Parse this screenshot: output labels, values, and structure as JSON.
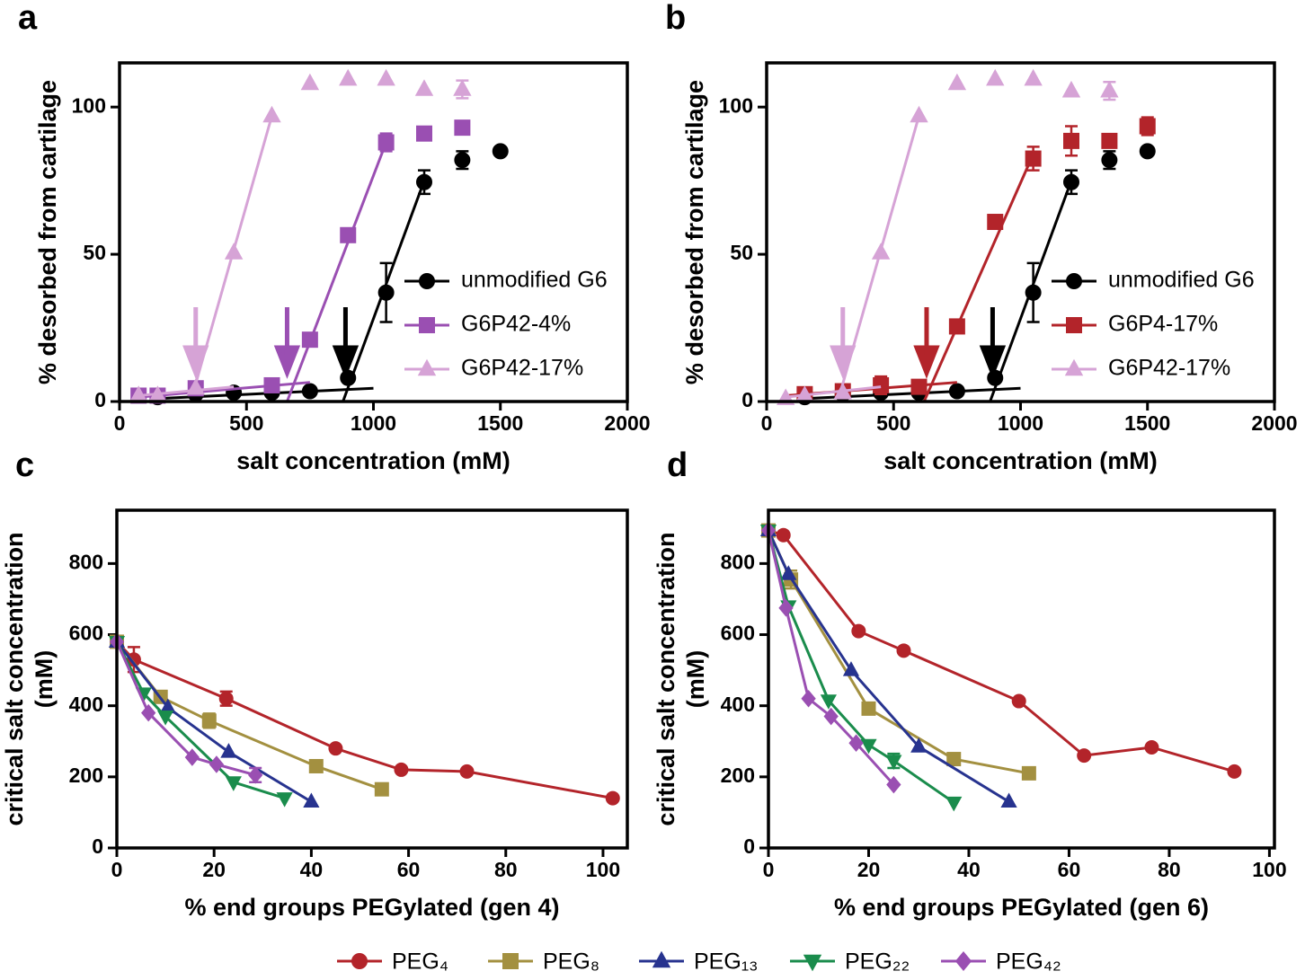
{
  "chart_data": [
    {
      "type": "scatter",
      "panel_label": "a",
      "xlabel": "salt concentration (mM)",
      "ylabel": "% desorbed from cartilage",
      "xlim": [
        0,
        2000
      ],
      "xticks": [
        0,
        500,
        1000,
        1500,
        2000
      ],
      "ylim": [
        0,
        115
      ],
      "yticks": [
        0,
        50,
        100
      ],
      "legend": "inside-right",
      "series": [
        {
          "name": "unmodified G6",
          "color": "#000000",
          "marker": "circle",
          "x": [
            150,
            300,
            450,
            600,
            750,
            900,
            1050,
            1200,
            1350,
            1500
          ],
          "values": [
            1.5,
            2.5,
            3,
            3,
            3.5,
            8,
            37,
            74.5,
            82,
            85
          ],
          "errors": [
            null,
            null,
            null,
            null,
            null,
            null,
            10,
            4,
            3,
            null
          ],
          "fits": [
            {
              "x": [
                150,
                1000
              ],
              "y": [
                1,
                4.5
              ]
            },
            {
              "x": [
                880,
                1200
              ],
              "y": [
                0,
                75
              ]
            }
          ],
          "arrow": 890
        },
        {
          "name": "G6P42-4%",
          "color": "#9a4fb2",
          "marker": "square",
          "x": [
            75,
            150,
            300,
            600,
            750,
            900,
            1050,
            1200,
            1350
          ],
          "values": [
            2,
            2,
            4.5,
            5.5,
            21,
            56.5,
            88,
            91,
            93
          ],
          "errors": [
            null,
            null,
            null,
            null,
            null,
            null,
            3,
            2,
            null
          ],
          "fits": [
            {
              "x": [
                75,
                750
              ],
              "y": [
                1.5,
                6.5
              ]
            },
            {
              "x": [
                660,
                1050
              ],
              "y": [
                0,
                88
              ]
            }
          ],
          "arrow": 660
        },
        {
          "name": "G6P42-17%",
          "color": "#d6a3d6",
          "marker": "triangle",
          "x": [
            75,
            150,
            300,
            450,
            600,
            750,
            900,
            1050,
            1200,
            1350
          ],
          "values": [
            2,
            2,
            4.5,
            50.5,
            97,
            108,
            109.5,
            109.5,
            106,
            106
          ],
          "errors": [
            null,
            null,
            null,
            null,
            null,
            null,
            null,
            null,
            null,
            3
          ],
          "fits": [
            {
              "x": [
                75,
                450
              ],
              "y": [
                2,
                5
              ]
            },
            {
              "x": [
                290,
                600
              ],
              "y": [
                3,
                97
              ]
            }
          ],
          "arrow": 300
        }
      ]
    },
    {
      "type": "scatter",
      "panel_label": "b",
      "xlabel": "salt concentration (mM)",
      "ylabel": "% desorbed from cartilage",
      "xlim": [
        0,
        2000
      ],
      "xticks": [
        0,
        500,
        1000,
        1500,
        2000
      ],
      "ylim": [
        0,
        115
      ],
      "yticks": [
        0,
        50,
        100
      ],
      "legend": "inside-right",
      "series": [
        {
          "name": "unmodified G6",
          "color": "#000000",
          "marker": "circle",
          "x": [
            150,
            300,
            450,
            600,
            750,
            900,
            1050,
            1200,
            1350,
            1500
          ],
          "values": [
            1.5,
            2.5,
            3,
            3,
            3.5,
            8,
            37,
            74.5,
            82,
            85
          ],
          "errors": [
            null,
            null,
            null,
            null,
            null,
            null,
            10,
            4,
            3,
            null
          ],
          "fits": [
            {
              "x": [
                150,
                1000
              ],
              "y": [
                1,
                4.5
              ]
            },
            {
              "x": [
                880,
                1200
              ],
              "y": [
                0,
                75
              ]
            }
          ],
          "arrow": 890
        },
        {
          "name": "G6P4-17%",
          "color": "#b3242a",
          "marker": "square",
          "x": [
            150,
            300,
            450,
            600,
            750,
            900,
            1050,
            1200,
            1350,
            1500
          ],
          "values": [
            2.5,
            3.5,
            5.5,
            5,
            25.5,
            61,
            82.5,
            88.5,
            88.5,
            93.5
          ],
          "errors": [
            null,
            null,
            3,
            null,
            2,
            null,
            4,
            5,
            null,
            3
          ],
          "fits": [
            {
              "x": [
                75,
                750
              ],
              "y": [
                2,
                6.5
              ]
            },
            {
              "x": [
                620,
                1050
              ],
              "y": [
                0,
                84
              ]
            }
          ],
          "arrow": 630
        },
        {
          "name": "G6P42-17%",
          "color": "#d6a3d6",
          "marker": "triangle",
          "x": [
            75,
            150,
            300,
            450,
            600,
            750,
            900,
            1050,
            1200,
            1350
          ],
          "values": [
            1,
            2,
            3,
            50.5,
            97,
            108,
            109.5,
            109.5,
            105.5,
            105.5
          ],
          "errors": [
            null,
            null,
            null,
            null,
            null,
            null,
            null,
            null,
            null,
            3
          ],
          "fits": [
            {
              "x": [
                75,
                450
              ],
              "y": [
                1.5,
                5
              ]
            },
            {
              "x": [
                290,
                600
              ],
              "y": [
                3,
                97
              ]
            }
          ],
          "arrow": 300
        }
      ]
    },
    {
      "type": "line",
      "panel_label": "c",
      "xlabel": "% end groups PEGylated (gen 4)",
      "ylabel": [
        "critical salt concentration",
        "(mM)"
      ],
      "xlim": [
        0,
        105
      ],
      "xticks": [
        0,
        20,
        40,
        60,
        80,
        100
      ],
      "ylim": [
        0,
        950
      ],
      "yticks": [
        0,
        200,
        400,
        600,
        800
      ],
      "legend": "below",
      "series": [
        {
          "name": "PEG₄",
          "color": "#b3242a",
          "marker": "circle",
          "x": [
            0,
            3.5,
            22.5,
            45,
            58.5,
            72,
            102
          ],
          "values": [
            580,
            530,
            420,
            280,
            220,
            215,
            140
          ],
          "errors": [
            null,
            35,
            20,
            null,
            null,
            null,
            null
          ]
        },
        {
          "name": "PEG₈",
          "color": "#a39040",
          "marker": "square",
          "x": [
            0,
            9,
            19,
            41,
            54.5
          ],
          "values": [
            580,
            425,
            358,
            230,
            165
          ],
          "errors": [
            null,
            null,
            20,
            null,
            null
          ]
        },
        {
          "name": "PEG₁₃",
          "color": "#27338f",
          "marker": "triangle",
          "x": [
            0,
            10.5,
            23,
            40
          ],
          "values": [
            580,
            395,
            270,
            130
          ],
          "errors": [
            null,
            null,
            null,
            null
          ]
        },
        {
          "name": "PEG₂₂",
          "color": "#1a8c4c",
          "marker": "triangle-down",
          "x": [
            0,
            5.5,
            10,
            24,
            34.5
          ],
          "values": [
            580,
            435,
            370,
            185,
            140
          ],
          "errors": [
            null,
            null,
            null,
            null,
            null
          ]
        },
        {
          "name": "PEG₄₂",
          "color": "#9a4fb2",
          "marker": "diamond",
          "x": [
            0,
            6.5,
            15.5,
            20.5,
            28.5
          ],
          "values": [
            580,
            380,
            255,
            235,
            205
          ],
          "errors": [
            null,
            null,
            null,
            null,
            20
          ]
        }
      ]
    },
    {
      "type": "line",
      "panel_label": "d",
      "xlabel": "% end groups PEGylated (gen 6)",
      "ylabel": [
        "critical salt concentration",
        "(mM)"
      ],
      "xlim": [
        0,
        101
      ],
      "xticks": [
        0,
        20,
        40,
        60,
        80,
        100
      ],
      "ylim": [
        0,
        950
      ],
      "yticks": [
        0,
        200,
        400,
        600,
        800
      ],
      "series": [
        {
          "name": "PEG₄",
          "color": "#b3242a",
          "marker": "circle",
          "x": [
            0,
            3,
            18,
            27,
            50,
            63,
            76.5,
            93
          ],
          "values": [
            893,
            880,
            610,
            555,
            413,
            260,
            283,
            215
          ],
          "errors": [
            null,
            null,
            null,
            null,
            null,
            null,
            null,
            null
          ]
        },
        {
          "name": "PEG₈",
          "color": "#a39040",
          "marker": "square",
          "x": [
            0,
            4.5,
            20,
            37,
            52
          ],
          "values": [
            893,
            755,
            392,
            250,
            210
          ],
          "errors": [
            null,
            25,
            null,
            null,
            null
          ]
        },
        {
          "name": "PEG₁₃",
          "color": "#27338f",
          "marker": "triangle",
          "x": [
            0,
            4,
            16.5,
            30,
            48
          ],
          "values": [
            893,
            770,
            500,
            285,
            130
          ],
          "errors": [
            null,
            null,
            null,
            null,
            null
          ]
        },
        {
          "name": "PEG₂₂",
          "color": "#1a8c4c",
          "marker": "triangle-down",
          "x": [
            0,
            4,
            12,
            20,
            25,
            37
          ],
          "values": [
            893,
            680,
            415,
            290,
            245,
            128
          ],
          "errors": [
            null,
            null,
            null,
            null,
            20,
            null
          ]
        },
        {
          "name": "PEG₄₂",
          "color": "#9a4fb2",
          "marker": "diamond",
          "x": [
            0,
            3.5,
            8,
            12.5,
            17.5,
            25
          ],
          "values": [
            893,
            675,
            420,
            370,
            295,
            178
          ],
          "errors": [
            null,
            null,
            null,
            null,
            null,
            null
          ]
        }
      ]
    }
  ]
}
